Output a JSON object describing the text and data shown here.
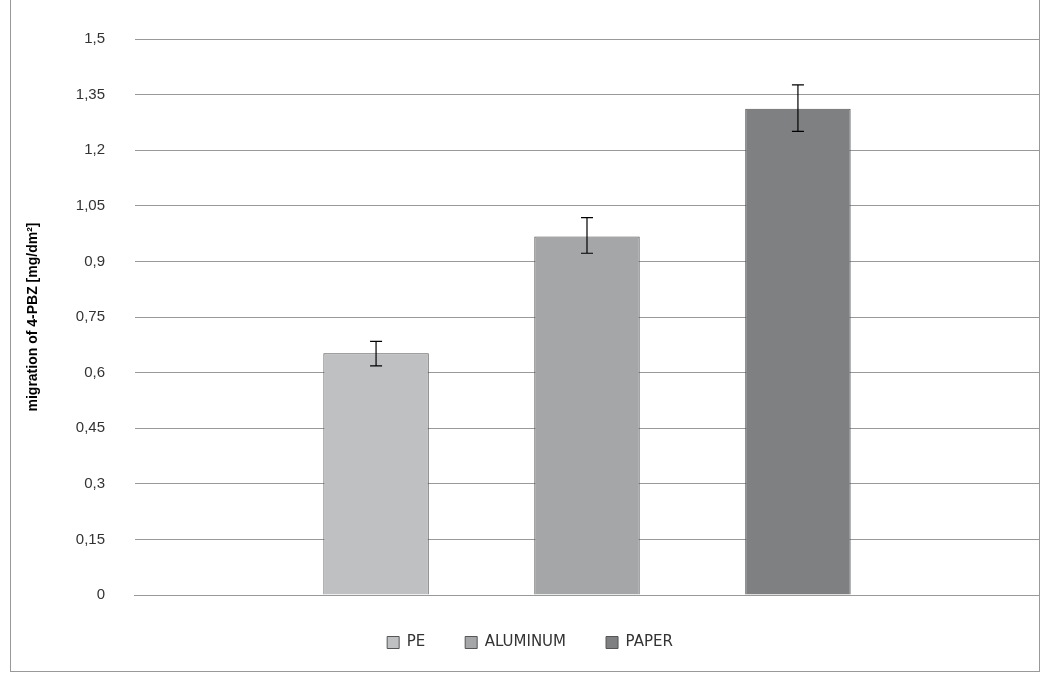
{
  "chart_data": {
    "type": "bar",
    "ylabel": "migration of 4-PBZ [mg/dm²]",
    "categories": [
      null
    ],
    "series": [
      {
        "name": "PE",
        "color": "#bfc0c2",
        "values": [
          0.652
        ],
        "errors": [
          [
            0.618,
            0.684
          ]
        ]
      },
      {
        "name": "ALUMINUM",
        "color": "#a5a6a8",
        "values": [
          0.967
        ],
        "errors": [
          [
            0.922,
            1.018
          ]
        ]
      },
      {
        "name": "PAPER",
        "color": "#7f8082",
        "values": [
          1.312
        ],
        "errors": [
          [
            1.251,
            1.376
          ]
        ]
      }
    ],
    "ylim": [
      0,
      1.5
    ],
    "yticks": [
      0,
      {
        "value": 0.15,
        "label": "0,15"
      },
      {
        "value": 0.3,
        "label": "0,3"
      },
      {
        "value": 0.45,
        "label": "0,45"
      },
      {
        "value": 0.6,
        "label": "0,6"
      },
      {
        "value": 0.75,
        "label": "0,75"
      },
      {
        "value": 0.9,
        "label": "0,9"
      },
      {
        "value": 1.05,
        "label": "1,05"
      },
      {
        "value": 1.2,
        "label": "1,2"
      },
      {
        "value": 1.35,
        "label": "1,35"
      },
      {
        "value": 1.5,
        "label": "1,5"
      }
    ],
    "grid": "y",
    "legend": "bottom"
  }
}
